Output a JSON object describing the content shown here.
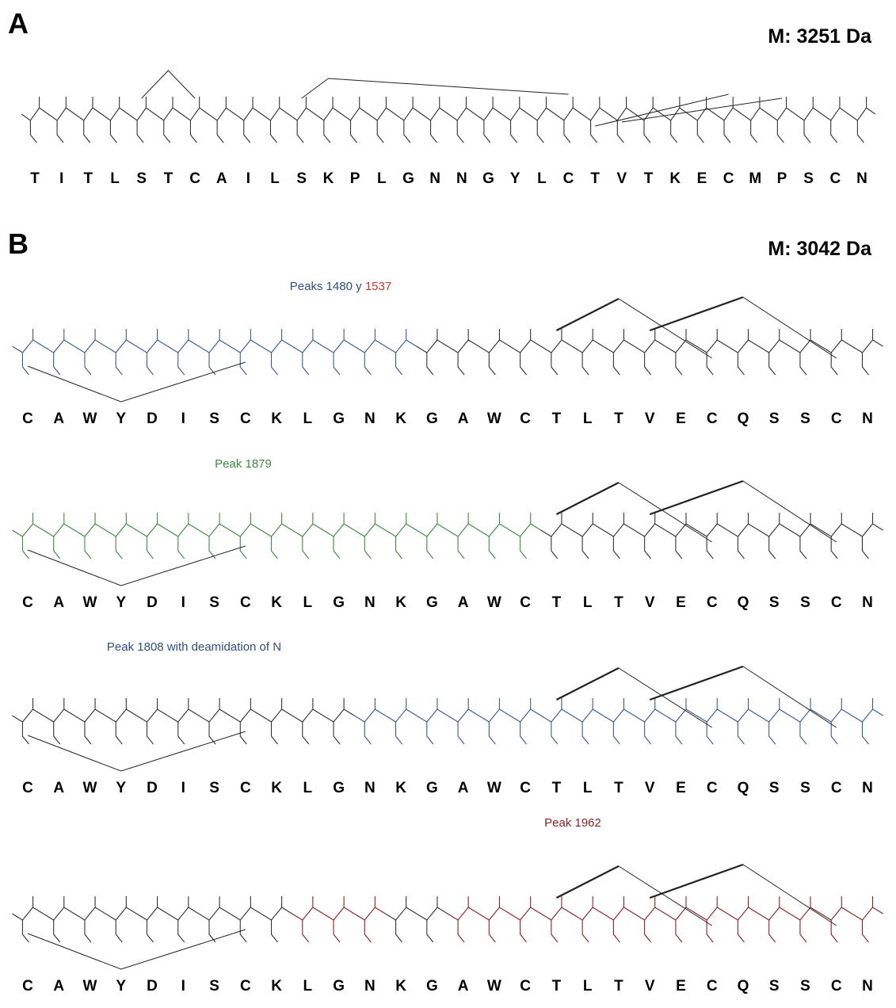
{
  "panels": [
    {
      "label": "A",
      "mass": "M: 3251 Da",
      "rows": [
        {
          "caption_parts": [],
          "sequence": [
            "T",
            "I",
            "T",
            "L",
            "S",
            "T",
            "C",
            "A",
            "I",
            "L",
            "S",
            "K",
            "P",
            "L",
            "G",
            "N",
            "N",
            "G",
            "Y",
            "L",
            "C",
            "T",
            "V",
            "T",
            "K",
            "E",
            "C",
            "M",
            "P",
            "S",
            "C",
            "N"
          ],
          "residue_colors": [
            "#333",
            "#333",
            "#333",
            "#333",
            "#333",
            "#333",
            "#333",
            "#333",
            "#333",
            "#333",
            "#333",
            "#333",
            "#333",
            "#333",
            "#333",
            "#333",
            "#333",
            "#333",
            "#333",
            "#333",
            "#333",
            "#333",
            "#333",
            "#333",
            "#333",
            "#333",
            "#333",
            "#333",
            "#333",
            "#333",
            "#333",
            "#333"
          ]
        }
      ]
    },
    {
      "label": "B",
      "mass": "M: 3042 Da",
      "rows": [
        {
          "caption_parts": [
            {
              "text": "Peaks 1480 y ",
              "color": "#2f4f7f"
            },
            {
              "text": "1537",
              "color": "#c0392b"
            }
          ],
          "sequence": [
            "C",
            "A",
            "W",
            "Y",
            "D",
            "I",
            "S",
            "C",
            "K",
            "L",
            "G",
            "N",
            "K",
            "G",
            "A",
            "W",
            "C",
            "T",
            "L",
            "T",
            "V",
            "E",
            "C",
            "Q",
            "S",
            "S",
            "C",
            "N"
          ],
          "residue_colors": [
            "#3a5a8c",
            "#3a5a8c",
            "#3a5a8c",
            "#3a5a8c",
            "#3a5a8c",
            "#3a5a8c",
            "#3a5a8c",
            "#3a5a8c",
            "#3a5a8c",
            "#3a5a8c",
            "#3a5a8c",
            "#3a5a8c",
            "#3a5a8c",
            "#333",
            "#333",
            "#333",
            "#333",
            "#333",
            "#333",
            "#333",
            "#333",
            "#333",
            "#333",
            "#333",
            "#333",
            "#333",
            "#333",
            "#333"
          ]
        },
        {
          "caption_parts": [
            {
              "text": "Peak 1879",
              "color": "#3e8a3e"
            }
          ],
          "sequence": [
            "C",
            "A",
            "W",
            "Y",
            "D",
            "I",
            "S",
            "C",
            "K",
            "L",
            "G",
            "N",
            "K",
            "G",
            "A",
            "W",
            "C",
            "T",
            "L",
            "T",
            "V",
            "E",
            "C",
            "Q",
            "S",
            "S",
            "C",
            "N"
          ],
          "residue_colors": [
            "#3e8a3e",
            "#3e8a3e",
            "#3e8a3e",
            "#3e8a3e",
            "#3e8a3e",
            "#3e8a3e",
            "#3e8a3e",
            "#3e8a3e",
            "#3e8a3e",
            "#3e8a3e",
            "#3e8a3e",
            "#3e8a3e",
            "#3e8a3e",
            "#3e8a3e",
            "#3e8a3e",
            "#3e8a3e",
            "#3e8a3e",
            "#333",
            "#333",
            "#333",
            "#333",
            "#333",
            "#333",
            "#333",
            "#333",
            "#333",
            "#333",
            "#333"
          ]
        },
        {
          "caption_parts": [
            {
              "text": "Peak 1808 with deamidation of N",
              "color": "#2f4f7f"
            }
          ],
          "sequence": [
            "C",
            "A",
            "W",
            "Y",
            "D",
            "I",
            "S",
            "C",
            "K",
            "L",
            "G",
            "N",
            "K",
            "G",
            "A",
            "W",
            "C",
            "T",
            "L",
            "T",
            "V",
            "E",
            "C",
            "Q",
            "S",
            "S",
            "C",
            "N"
          ],
          "residue_colors": [
            "#333",
            "#333",
            "#333",
            "#333",
            "#333",
            "#333",
            "#333",
            "#333",
            "#333",
            "#333",
            "#333",
            "#3a5a8c",
            "#3a5a8c",
            "#3a5a8c",
            "#3a5a8c",
            "#3a5a8c",
            "#3a5a8c",
            "#3a5a8c",
            "#3a5a8c",
            "#3a5a8c",
            "#3a5a8c",
            "#3a5a8c",
            "#3a5a8c",
            "#3a5a8c",
            "#3a5a8c",
            "#3a5a8c",
            "#3a5a8c",
            "#3a5a8c"
          ]
        },
        {
          "caption_parts": [
            {
              "text": "Peak 1962",
              "color": "#8b2222"
            }
          ],
          "sequence": [
            "C",
            "A",
            "W",
            "Y",
            "D",
            "I",
            "S",
            "C",
            "K",
            "L",
            "G",
            "N",
            "K",
            "G",
            "A",
            "W",
            "C",
            "T",
            "L",
            "T",
            "V",
            "E",
            "C",
            "Q",
            "S",
            "S",
            "C",
            "N"
          ],
          "residue_colors": [
            "#333",
            "#333",
            "#333",
            "#333",
            "#333",
            "#333",
            "#333",
            "#333",
            "#333",
            "#8b2222",
            "#8b2222",
            "#8b2222",
            "#333",
            "#333",
            "#8b2222",
            "#8b2222",
            "#8b2222",
            "#8b2222",
            "#8b2222",
            "#8b2222",
            "#8b2222",
            "#8b2222",
            "#8b2222",
            "#8b2222",
            "#8b2222",
            "#8b2222",
            "#8b2222",
            "#8b2222"
          ]
        }
      ]
    }
  ]
}
